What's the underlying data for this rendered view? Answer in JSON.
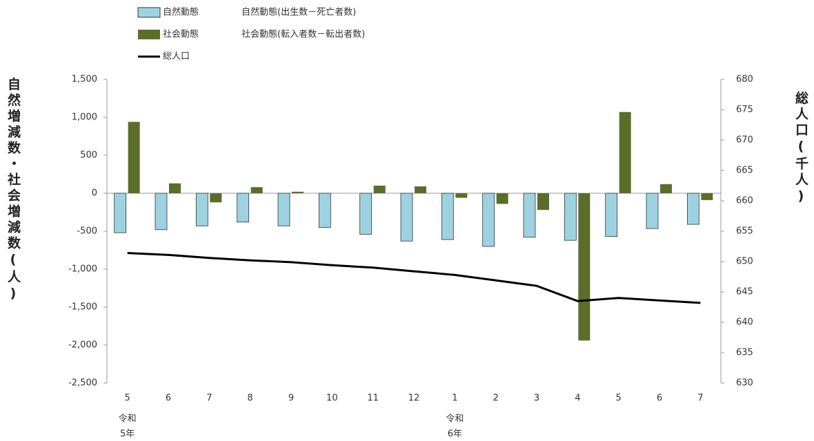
{
  "chart_data": {
    "type": "bar",
    "y_label": "自然増減数・社会増減数(人)",
    "y2_label": "総人口(千人)",
    "categories": [
      "5",
      "6",
      "7",
      "8",
      "9",
      "10",
      "11",
      "12",
      "1",
      "2",
      "3",
      "4",
      "5",
      "6",
      "7"
    ],
    "x_sublabels": [
      [
        "令和",
        "5年"
      ],
      null,
      null,
      null,
      null,
      null,
      null,
      null,
      [
        "令和",
        "6年"
      ],
      null,
      null,
      null,
      null,
      null,
      null
    ],
    "series": [
      {
        "name": "自然動態",
        "note": "自然動態(出生数－死亡者数)",
        "type": "bar",
        "color": "#9dd3e0",
        "values": [
          -520,
          -480,
          -430,
          -380,
          -430,
          -450,
          -540,
          -630,
          -610,
          -700,
          -580,
          -620,
          -570,
          -465,
          -410
        ]
      },
      {
        "name": "社会動態",
        "note": "社会動態(転入者数－転出者数)",
        "type": "bar",
        "color": "#5a6e2a",
        "values": [
          940,
          130,
          -120,
          80,
          20,
          0,
          100,
          90,
          -60,
          -140,
          -220,
          -1940,
          1070,
          120,
          -90
        ]
      },
      {
        "name": "総人口",
        "type": "line",
        "axis": "y2",
        "color": "#000000",
        "values": [
          651.4,
          651.1,
          650.6,
          650.2,
          649.9,
          649.4,
          649.0,
          648.4,
          647.8,
          646.9,
          646.0,
          643.5,
          644.0,
          643.6,
          643.2
        ]
      }
    ],
    "ylim": [
      -2500,
      1500
    ],
    "yticks": [
      {
        "value": 1500,
        "label": "1,500"
      },
      {
        "value": 1000,
        "label": "1,000"
      },
      500,
      0,
      -500,
      {
        "value": -1000,
        "label": "-1,000"
      },
      {
        "value": -1500,
        "label": "-1,500"
      },
      {
        "value": -2000,
        "label": "-2,000"
      },
      {
        "value": -2500,
        "label": "-2,500"
      }
    ],
    "y2lim": [
      630,
      680
    ],
    "y2ticks": [
      630,
      635,
      640,
      645,
      650,
      655,
      660,
      665,
      670,
      675,
      680
    ],
    "grid": false
  }
}
